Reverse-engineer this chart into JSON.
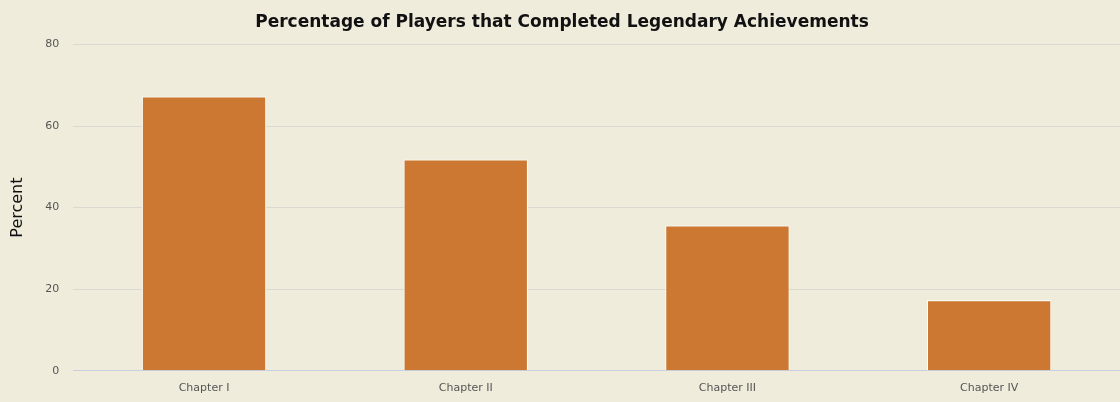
{
  "chart_data": {
    "type": "bar",
    "title": "Percentage of Players that Completed Legendary Achievements",
    "ylabel": "Percent",
    "categories": [
      "Chapter I",
      "Chapter II",
      "Chapter III",
      "Chapter IV"
    ],
    "values": [
      67.2,
      51.8,
      35.6,
      17.3
    ],
    "color": "#cc7832",
    "ylim": [
      0,
      80
    ],
    "yticks": [
      0,
      20,
      40,
      60,
      80
    ],
    "grid": "y"
  }
}
